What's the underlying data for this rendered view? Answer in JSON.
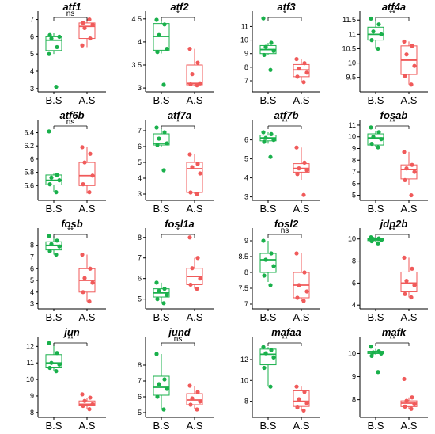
{
  "colors": {
    "group1": "#19b04b",
    "group2": "#f05a5a"
  },
  "chart_data": [
    {
      "type": "box",
      "title": "atf1",
      "categories": [
        "B.S",
        "A.S"
      ],
      "yticks": [
        3,
        4,
        5,
        6,
        7
      ],
      "ylim": [
        2.9,
        7.3
      ],
      "significance": "ns",
      "series": [
        {
          "group": "B.S",
          "box": {
            "whisker_low": 5.0,
            "q1": 5.2,
            "median": 5.8,
            "q3": 6.0,
            "whisker_high": 6.2
          },
          "points": [
            5.0,
            5.4,
            5.9,
            6.0,
            6.1,
            3.1
          ]
        },
        {
          "group": "A.S",
          "box": {
            "whisker_low": 5.4,
            "q1": 5.9,
            "median": 6.6,
            "q3": 6.8,
            "whisker_high": 7.0
          },
          "points": [
            5.5,
            5.9,
            6.5,
            6.7,
            6.8,
            7.0
          ]
        }
      ]
    },
    {
      "type": "box",
      "title": "atf2",
      "categories": [
        "B.S",
        "A.S"
      ],
      "yticks": [
        3.0,
        3.5,
        4.0,
        4.5
      ],
      "ylim": [
        2.95,
        4.6
      ],
      "significance": "*",
      "series": [
        {
          "group": "B.S",
          "box": {
            "whisker_low": 3.75,
            "q1": 3.82,
            "median": 4.12,
            "q3": 4.4,
            "whisker_high": 4.5
          },
          "points": [
            4.48,
            4.38,
            4.15,
            3.85,
            3.78,
            3.07
          ]
        },
        {
          "group": "A.S",
          "box": {
            "whisker_low": 3.05,
            "q1": 3.07,
            "median": 3.1,
            "q3": 3.5,
            "whisker_high": 3.85
          },
          "points": [
            3.85,
            3.55,
            3.3,
            3.1,
            3.08,
            3.06
          ]
        }
      ]
    },
    {
      "type": "box",
      "title": "atf3",
      "categories": [
        "B.S",
        "A.S"
      ],
      "yticks": [
        7,
        8,
        9,
        10,
        11
      ],
      "ylim": [
        6.3,
        11.9
      ],
      "significance": "*",
      "series": [
        {
          "group": "B.S",
          "box": {
            "whisker_low": 8.9,
            "q1": 9.0,
            "median": 9.3,
            "q3": 9.6,
            "whisker_high": 9.8
          },
          "points": [
            11.6,
            9.8,
            9.5,
            9.2,
            8.9,
            7.8
          ]
        },
        {
          "group": "A.S",
          "box": {
            "whisker_low": 6.9,
            "q1": 7.3,
            "median": 7.8,
            "q3": 8.2,
            "whisker_high": 8.6
          },
          "points": [
            8.6,
            8.3,
            7.9,
            7.6,
            7.3,
            6.9
          ]
        }
      ]
    },
    {
      "type": "box",
      "title": "atf4a",
      "categories": [
        "B.S",
        "A.S"
      ],
      "yticks": [
        9.5,
        10.0,
        10.5,
        11.0,
        11.5
      ],
      "ylim": [
        9.05,
        11.7
      ],
      "significance": "**",
      "series": [
        {
          "group": "B.S",
          "box": {
            "whisker_low": 10.5,
            "q1": 10.8,
            "median": 11.0,
            "q3": 11.25,
            "whisker_high": 11.55
          },
          "points": [
            11.55,
            11.35,
            11.1,
            11.0,
            10.8,
            10.5
          ]
        },
        {
          "group": "A.S",
          "box": {
            "whisker_low": 9.25,
            "q1": 9.6,
            "median": 10.1,
            "q3": 10.6,
            "whisker_high": 10.75
          },
          "points": [
            10.75,
            10.6,
            10.3,
            9.9,
            9.55,
            9.25
          ]
        }
      ]
    },
    {
      "type": "box",
      "title": "atf6b",
      "categories": [
        "B.S",
        "A.S"
      ],
      "yticks": [
        5.6,
        5.8,
        6.0,
        6.2,
        6.4
      ],
      "ylim": [
        5.4,
        6.55
      ],
      "significance": "ns",
      "series": [
        {
          "group": "B.S",
          "box": {
            "whisker_low": 5.5,
            "q1": 5.61,
            "median": 5.68,
            "q3": 5.76,
            "whisker_high": 5.78
          },
          "points": [
            6.42,
            5.76,
            5.72,
            5.68,
            5.62,
            5.5
          ]
        },
        {
          "group": "A.S",
          "box": {
            "whisker_low": 5.48,
            "q1": 5.6,
            "median": 5.75,
            "q3": 5.95,
            "whisker_high": 6.18
          },
          "points": [
            6.18,
            6.08,
            5.95,
            5.75,
            5.62,
            5.5
          ]
        }
      ]
    },
    {
      "type": "box",
      "title": "atf7a",
      "categories": [
        "B.S",
        "A.S"
      ],
      "yticks": [
        3,
        4,
        5,
        6,
        7
      ],
      "ylim": [
        2.7,
        7.5
      ],
      "significance": "*",
      "series": [
        {
          "group": "B.S",
          "box": {
            "whisker_low": 6.0,
            "q1": 6.1,
            "median": 6.2,
            "q3": 6.8,
            "whisker_high": 7.2
          },
          "points": [
            7.2,
            6.9,
            6.5,
            6.2,
            6.1,
            4.5
          ]
        },
        {
          "group": "A.S",
          "box": {
            "whisker_low": 3.0,
            "q1": 3.1,
            "median": 4.6,
            "q3": 5.0,
            "whisker_high": 5.5
          },
          "points": [
            5.5,
            4.9,
            4.7,
            4.3,
            3.1,
            3.0
          ]
        }
      ]
    },
    {
      "type": "box",
      "title": "atf7b",
      "categories": [
        "B.S",
        "A.S"
      ],
      "yticks": [
        3,
        4,
        5,
        6
      ],
      "ylim": [
        2.9,
        6.9
      ],
      "significance": "**",
      "series": [
        {
          "group": "B.S",
          "box": {
            "whisker_low": 5.8,
            "q1": 5.95,
            "median": 6.1,
            "q3": 6.25,
            "whisker_high": 6.4
          },
          "points": [
            6.4,
            6.3,
            6.1,
            6.0,
            5.9,
            5.1
          ]
        },
        {
          "group": "A.S",
          "box": {
            "whisker_low": 3.9,
            "q1": 4.3,
            "median": 4.5,
            "q3": 4.75,
            "whisker_high": 5.6
          },
          "points": [
            5.6,
            4.8,
            4.5,
            4.4,
            4.2,
            3.1
          ]
        }
      ]
    },
    {
      "type": "box",
      "title": "fosab",
      "categories": [
        "B.S",
        "A.S"
      ],
      "yticks": [
        5,
        6,
        7,
        8,
        9,
        10,
        11
      ],
      "ylim": [
        4.7,
        11.2
      ],
      "significance": "**",
      "series": [
        {
          "group": "B.S",
          "box": {
            "whisker_low": 9.1,
            "q1": 9.3,
            "median": 9.9,
            "q3": 10.25,
            "whisker_high": 10.5
          },
          "points": [
            10.8,
            10.4,
            10.0,
            9.8,
            9.4,
            9.1
          ]
        },
        {
          "group": "A.S",
          "box": {
            "whisker_low": 5.9,
            "q1": 6.4,
            "median": 7.2,
            "q3": 7.6,
            "whisker_high": 8.7
          },
          "points": [
            8.7,
            7.6,
            7.3,
            7.0,
            6.3,
            5.0
          ]
        }
      ]
    },
    {
      "type": "box",
      "title": "fosb",
      "categories": [
        "B.S",
        "A.S"
      ],
      "yticks": [
        3,
        4,
        5,
        6,
        7,
        8
      ],
      "ylim": [
        2.7,
        9.2
      ],
      "significance": "**",
      "series": [
        {
          "group": "B.S",
          "box": {
            "whisker_low": 7.2,
            "q1": 7.6,
            "median": 8.0,
            "q3": 8.3,
            "whisker_high": 8.8
          },
          "points": [
            8.8,
            8.4,
            8.1,
            7.9,
            7.5,
            7.2
          ]
        },
        {
          "group": "A.S",
          "box": {
            "whisker_low": 3.2,
            "q1": 4.0,
            "median": 5.0,
            "q3": 6.0,
            "whisker_high": 7.2
          },
          "points": [
            7.2,
            6.0,
            5.2,
            4.8,
            4.0,
            3.2
          ]
        }
      ]
    },
    {
      "type": "box",
      "title": "fosl1a",
      "categories": [
        "B.S",
        "A.S"
      ],
      "yticks": [
        5,
        6,
        7,
        8
      ],
      "ylim": [
        4.6,
        8.3
      ],
      "significance": "*",
      "series": [
        {
          "group": "B.S",
          "box": {
            "whisker_low": 4.8,
            "q1": 5.1,
            "median": 5.3,
            "q3": 5.5,
            "whisker_high": 5.8
          },
          "points": [
            5.8,
            5.5,
            5.4,
            5.2,
            5.0,
            4.8
          ]
        },
        {
          "group": "A.S",
          "box": {
            "whisker_low": 5.5,
            "q1": 5.7,
            "median": 6.1,
            "q3": 6.5,
            "whisker_high": 7.0
          },
          "points": [
            8.0,
            7.0,
            6.5,
            6.0,
            5.7,
            5.5
          ]
        }
      ]
    },
    {
      "type": "box",
      "title": "fosl2",
      "categories": [
        "B.S",
        "A.S"
      ],
      "yticks": [
        7.0,
        7.5,
        8.0,
        8.5,
        9.0
      ],
      "ylim": [
        6.9,
        9.3
      ],
      "significance": "ns",
      "series": [
        {
          "group": "B.S",
          "box": {
            "whisker_low": 7.7,
            "q1": 8.0,
            "median": 8.4,
            "q3": 8.6,
            "whisker_high": 9.0
          },
          "points": [
            9.0,
            8.6,
            8.4,
            8.2,
            7.9,
            7.6
          ]
        },
        {
          "group": "A.S",
          "box": {
            "whisker_low": 7.1,
            "q1": 7.2,
            "median": 7.6,
            "q3": 8.0,
            "whisker_high": 8.6
          },
          "points": [
            8.6,
            8.0,
            7.6,
            7.4,
            7.2,
            7.1
          ]
        }
      ]
    },
    {
      "type": "box",
      "title": "jdp2b",
      "categories": [
        "B.S",
        "A.S"
      ],
      "yticks": [
        4,
        6,
        8,
        10
      ],
      "ylim": [
        3.8,
        10.7
      ],
      "significance": "**",
      "series": [
        {
          "group": "B.S",
          "box": {
            "whisker_low": 9.75,
            "q1": 9.85,
            "median": 9.95,
            "q3": 10.05,
            "whisker_high": 10.15
          },
          "points": [
            10.15,
            10.05,
            10.0,
            9.9,
            9.8,
            9.6
          ]
        },
        {
          "group": "A.S",
          "box": {
            "whisker_low": 4.7,
            "q1": 5.2,
            "median": 6.0,
            "q3": 7.0,
            "whisker_high": 8.3
          },
          "points": [
            8.3,
            7.3,
            6.2,
            5.8,
            5.0,
            4.7
          ]
        }
      ]
    },
    {
      "type": "box",
      "title": "jun",
      "categories": [
        "B.S",
        "A.S"
      ],
      "yticks": [
        8,
        9,
        10,
        11,
        12
      ],
      "ylim": [
        7.8,
        12.4
      ],
      "significance": "**",
      "series": [
        {
          "group": "B.S",
          "box": {
            "whisker_low": 10.5,
            "q1": 10.7,
            "median": 11.0,
            "q3": 11.5,
            "whisker_high": 12.2
          },
          "points": [
            12.2,
            11.6,
            11.0,
            10.9,
            10.7,
            10.5
          ]
        },
        {
          "group": "A.S",
          "box": {
            "whisker_low": 8.2,
            "q1": 8.4,
            "median": 8.5,
            "q3": 8.7,
            "whisker_high": 8.9
          },
          "points": [
            9.1,
            8.9,
            8.7,
            8.5,
            8.4,
            8.2
          ]
        }
      ]
    },
    {
      "type": "box",
      "title": "jund",
      "categories": [
        "B.S",
        "A.S"
      ],
      "yticks": [
        5,
        6,
        7,
        8
      ],
      "ylim": [
        4.8,
        9.6
      ],
      "significance": "ns",
      "series": [
        {
          "group": "B.S",
          "box": {
            "whisker_low": 5.2,
            "q1": 6.1,
            "median": 6.6,
            "q3": 7.3,
            "whisker_high": 8.7
          },
          "points": [
            8.7,
            7.1,
            6.8,
            6.5,
            6.0,
            5.2
          ]
        },
        {
          "group": "A.S",
          "box": {
            "whisker_low": 5.2,
            "q1": 5.5,
            "median": 5.8,
            "q3": 6.2,
            "whisker_high": 6.7
          },
          "points": [
            6.7,
            6.3,
            5.9,
            5.7,
            5.5,
            5.2
          ]
        }
      ]
    },
    {
      "type": "box",
      "title": "mafaa",
      "categories": [
        "B.S",
        "A.S"
      ],
      "yticks": [
        8,
        10,
        12
      ],
      "ylim": [
        6.6,
        13.9
      ],
      "significance": "**",
      "series": [
        {
          "group": "B.S",
          "box": {
            "whisker_low": 9.4,
            "q1": 11.5,
            "median": 12.5,
            "q3": 13.0,
            "whisker_high": 13.2
          },
          "points": [
            13.2,
            12.9,
            12.6,
            12.2,
            11.2,
            9.4
          ]
        },
        {
          "group": "A.S",
          "box": {
            "whisker_low": 7.1,
            "q1": 7.5,
            "median": 8.0,
            "q3": 9.0,
            "whisker_high": 9.4
          },
          "points": [
            9.4,
            8.9,
            8.2,
            7.8,
            7.4,
            7.1
          ]
        }
      ]
    },
    {
      "type": "box",
      "title": "mafk",
      "categories": [
        "B.S",
        "A.S"
      ],
      "yticks": [
        8,
        9,
        10
      ],
      "ylim": [
        7.3,
        10.6
      ],
      "significance": "**",
      "series": [
        {
          "group": "B.S",
          "box": {
            "whisker_low": 9.95,
            "q1": 10.0,
            "median": 10.05,
            "q3": 10.1,
            "whisker_high": 10.2
          },
          "points": [
            10.3,
            10.1,
            10.05,
            10.0,
            9.9,
            9.2
          ]
        },
        {
          "group": "A.S",
          "box": {
            "whisker_low": 7.6,
            "q1": 7.7,
            "median": 7.85,
            "q3": 7.95,
            "whisker_high": 8.1
          },
          "points": [
            8.9,
            8.1,
            7.95,
            7.8,
            7.7,
            7.6
          ]
        }
      ]
    }
  ]
}
